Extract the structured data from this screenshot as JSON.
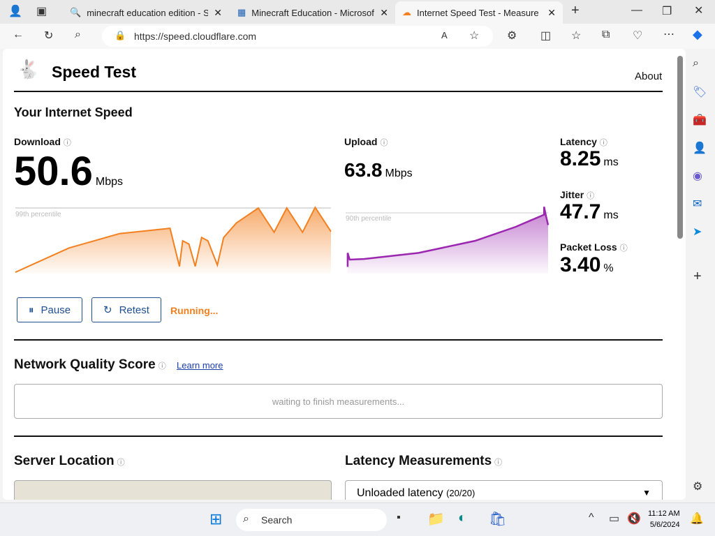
{
  "browser": {
    "tabs": [
      {
        "title": "minecraft education edition - Se",
        "icon": "search-icon"
      },
      {
        "title": "Minecraft Education - Microsoft",
        "icon": "windows-icon"
      },
      {
        "title": "Internet Speed Test - Measure N",
        "icon": "cloudflare-icon"
      }
    ],
    "url": "https://speed.cloudflare.com"
  },
  "header": {
    "title": "Speed Test",
    "about": "About"
  },
  "speed": {
    "title": "Your Internet Speed",
    "download": {
      "label": "Download",
      "value": "50.6",
      "unit": "Mbps",
      "percentile": "99th percentile",
      "color": "#f38020",
      "sparkline_progress_pct": [
        0,
        17,
        33,
        49,
        52,
        53,
        55,
        57,
        59,
        61,
        64,
        66,
        70,
        77,
        82,
        86,
        91,
        95,
        100
      ],
      "sparkline_pct_of_percentile": [
        2,
        39,
        61,
        69,
        11,
        50,
        45,
        11,
        55,
        50,
        13,
        55,
        77,
        100,
        63,
        100,
        63,
        101,
        64
      ]
    },
    "upload": {
      "label": "Upload",
      "value": "63.8",
      "unit": "Mbps",
      "percentile": "90th percentile",
      "color": "#9b27b0",
      "sparkline_progress_pct": [
        1,
        1,
        2,
        9,
        36,
        64,
        84,
        98,
        98,
        99,
        100
      ],
      "sparkline_pct_of_percentile": [
        11,
        34,
        23,
        24,
        34,
        54,
        77,
        97,
        110,
        94,
        80
      ]
    },
    "latency": {
      "label": "Latency",
      "value": "8.25",
      "unit": "ms"
    },
    "jitter": {
      "label": "Jitter",
      "value": "47.7",
      "unit": "ms"
    },
    "packet_loss": {
      "label": "Packet Loss",
      "value": "3.40",
      "unit": "%"
    },
    "pause": "Pause",
    "retest": "Retest",
    "status": "Running..."
  },
  "quality": {
    "title": "Network Quality Score",
    "learn_more": "Learn more",
    "waiting": "waiting to finish measurements..."
  },
  "server": {
    "title": "Server Location"
  },
  "latency_meas": {
    "title": "Latency Measurements",
    "select": "Unloaded latency",
    "count": "(20/20)"
  },
  "taskbar": {
    "search": "Search",
    "time": "11:12 AM",
    "date": "5/6/2024"
  }
}
